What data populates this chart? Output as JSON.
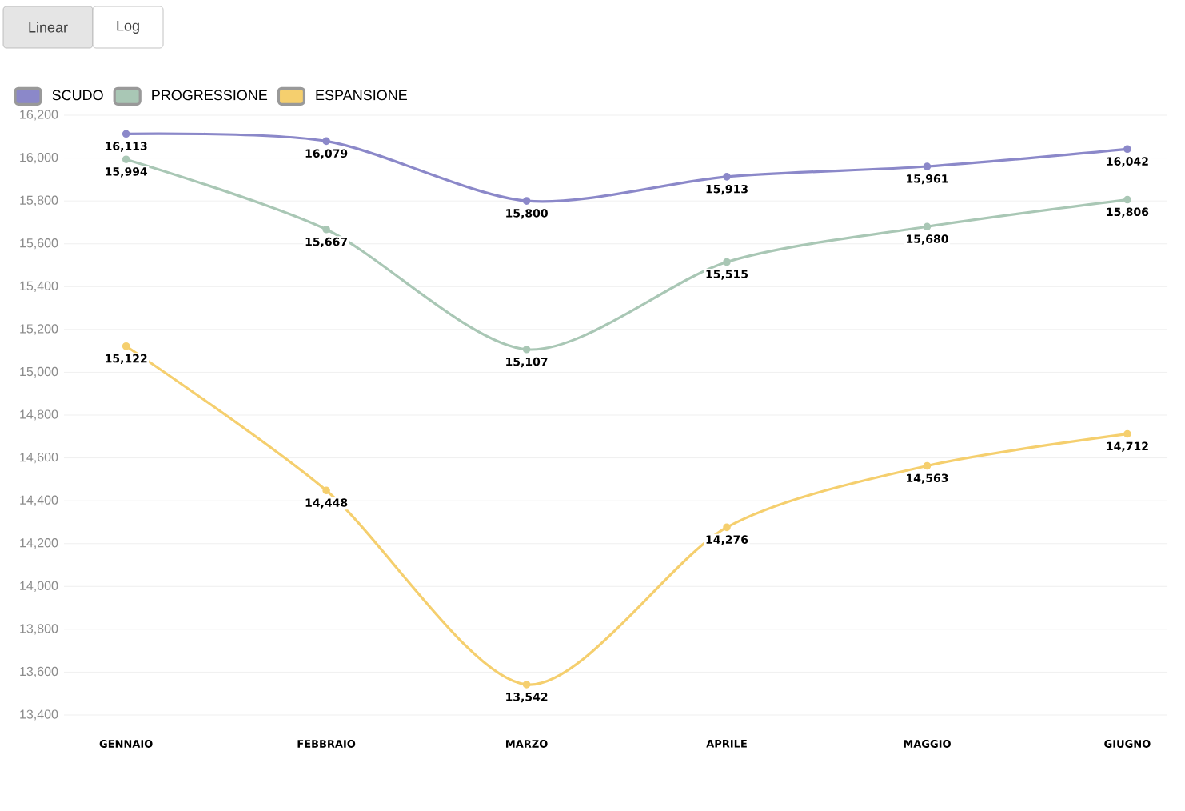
{
  "chart_data": {
    "type": "line",
    "categories": [
      "GENNAIO",
      "FEBBRAIO",
      "MARZO",
      "APRILE",
      "MAGGIO",
      "GIUGNO"
    ],
    "series": [
      {
        "name": "SCUDO",
        "color": "#8b88c9",
        "values": [
          16113,
          16079,
          15800,
          15913,
          15961,
          16042
        ],
        "value_labels": [
          "16,113",
          "16,079",
          "15,800",
          "15,913",
          "15,961",
          "16,042"
        ]
      },
      {
        "name": "PROGRESSIONE",
        "color": "#a9c7b5",
        "values": [
          15994,
          15667,
          15107,
          15515,
          15680,
          15806
        ],
        "value_labels": [
          "15,994",
          "15,667",
          "15,107",
          "15,515",
          "15,680",
          "15,806"
        ]
      },
      {
        "name": "ESPANSIONE",
        "color": "#f5cf6e",
        "values": [
          15122,
          14448,
          13542,
          14276,
          14563,
          14712
        ],
        "value_labels": [
          "15,122",
          "14,448",
          "13,542",
          "14,276",
          "14,563",
          "14,712"
        ]
      }
    ],
    "ylim": [
      13400,
      16200
    ],
    "yticks": [
      {
        "value": 13400,
        "label": "13,400"
      },
      {
        "value": 13600,
        "label": "13,600"
      },
      {
        "value": 13800,
        "label": "13,800"
      },
      {
        "value": 14000,
        "label": "14,000"
      },
      {
        "value": 14200,
        "label": "14,200"
      },
      {
        "value": 14400,
        "label": "14,400"
      },
      {
        "value": 14600,
        "label": "14,600"
      },
      {
        "value": 14800,
        "label": "14,800"
      },
      {
        "value": 15000,
        "label": "15,000"
      },
      {
        "value": 15200,
        "label": "15,200"
      },
      {
        "value": 15400,
        "label": "15,400"
      },
      {
        "value": 15600,
        "label": "15,600"
      },
      {
        "value": 15800,
        "label": "15,800"
      },
      {
        "value": 16000,
        "label": "16,000"
      },
      {
        "value": 16200,
        "label": "16,200"
      }
    ],
    "grid": "y",
    "legend": "top left",
    "marker": "circle",
    "line_style": "solid",
    "annotations": [
      "Linear",
      "Log"
    ]
  }
}
